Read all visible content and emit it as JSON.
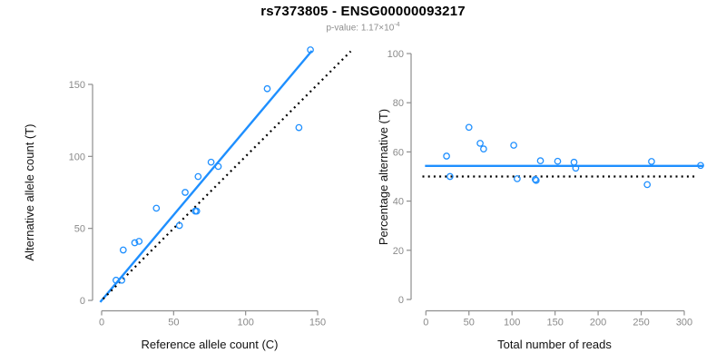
{
  "header": {
    "title": "rs7373805 - ENSG00000093217",
    "p_value_label": "p-value: 1.17×10",
    "p_value_exponent": "-4"
  },
  "colors": {
    "accent_blue": "#1E8FFF",
    "dotted_black": "#000000",
    "axis_gray": "#8e8e8e",
    "tick_label_gray": "#8a8a8a",
    "axis_title_black": "#111111",
    "background": "#ffffff"
  },
  "chart_data": [
    {
      "type": "scatter",
      "panel": "left",
      "xlabel": "Reference allele count (C)",
      "ylabel": "Alternative allele count (T)",
      "xticks": [
        0,
        50,
        100,
        150
      ],
      "yticks": [
        0,
        50,
        100,
        150
      ],
      "xlim": [
        -7,
        177
      ],
      "ylim": [
        -7,
        177
      ],
      "grid": false,
      "legend": "none",
      "marker": "open-circle",
      "points": [
        [
          10,
          14
        ],
        [
          14,
          14
        ],
        [
          15,
          35
        ],
        [
          23,
          40
        ],
        [
          26,
          41
        ],
        [
          38,
          64
        ],
        [
          54,
          52
        ],
        [
          58,
          75
        ],
        [
          65,
          62
        ],
        [
          66,
          62
        ],
        [
          67,
          86
        ],
        [
          76,
          96
        ],
        [
          81,
          93
        ],
        [
          115,
          147
        ],
        [
          137,
          120
        ],
        [
          145,
          174
        ]
      ],
      "lines": [
        {
          "name": "regression-line",
          "x1": -1,
          "y1": -1.2,
          "x2": 146,
          "y2": 173.3,
          "style": "solid",
          "color_key": "accent_blue",
          "width": 2.4
        },
        {
          "name": "identity-line",
          "x1": 1,
          "y1": 1,
          "x2": 173,
          "y2": 173,
          "style": "dotted",
          "color_key": "dotted_black",
          "width": 2.2
        }
      ]
    },
    {
      "type": "scatter",
      "panel": "right",
      "xlabel": "Total number of reads",
      "ylabel": "Percentage alternative (T)",
      "xticks": [
        0,
        50,
        100,
        150,
        200,
        250,
        300
      ],
      "yticks": [
        0,
        20,
        40,
        60,
        80,
        100
      ],
      "xlim": [
        -12,
        330
      ],
      "ylim": [
        0,
        100
      ],
      "grid": false,
      "legend": "none",
      "marker": "open-circle",
      "points": [
        [
          24,
          58.3
        ],
        [
          28,
          50.0
        ],
        [
          50,
          70.0
        ],
        [
          63,
          63.5
        ],
        [
          67,
          61.2
        ],
        [
          102,
          62.7
        ],
        [
          106,
          49.1
        ],
        [
          127,
          48.8
        ],
        [
          128,
          48.4
        ],
        [
          133,
          56.4
        ],
        [
          153,
          56.2
        ],
        [
          172,
          55.8
        ],
        [
          174,
          53.4
        ],
        [
          257,
          46.7
        ],
        [
          262,
          56.1
        ],
        [
          319,
          54.5
        ]
      ],
      "lines": [
        {
          "name": "mean-line",
          "x1": -1,
          "y1": 54.3,
          "x2": 322,
          "y2": 54.3,
          "style": "solid",
          "color_key": "accent_blue",
          "width": 2.4
        },
        {
          "name": "reference-line",
          "x1": -4,
          "y1": 50,
          "x2": 313,
          "y2": 50,
          "style": "dotted",
          "color_key": "dotted_black",
          "width": 2.2
        }
      ]
    }
  ]
}
